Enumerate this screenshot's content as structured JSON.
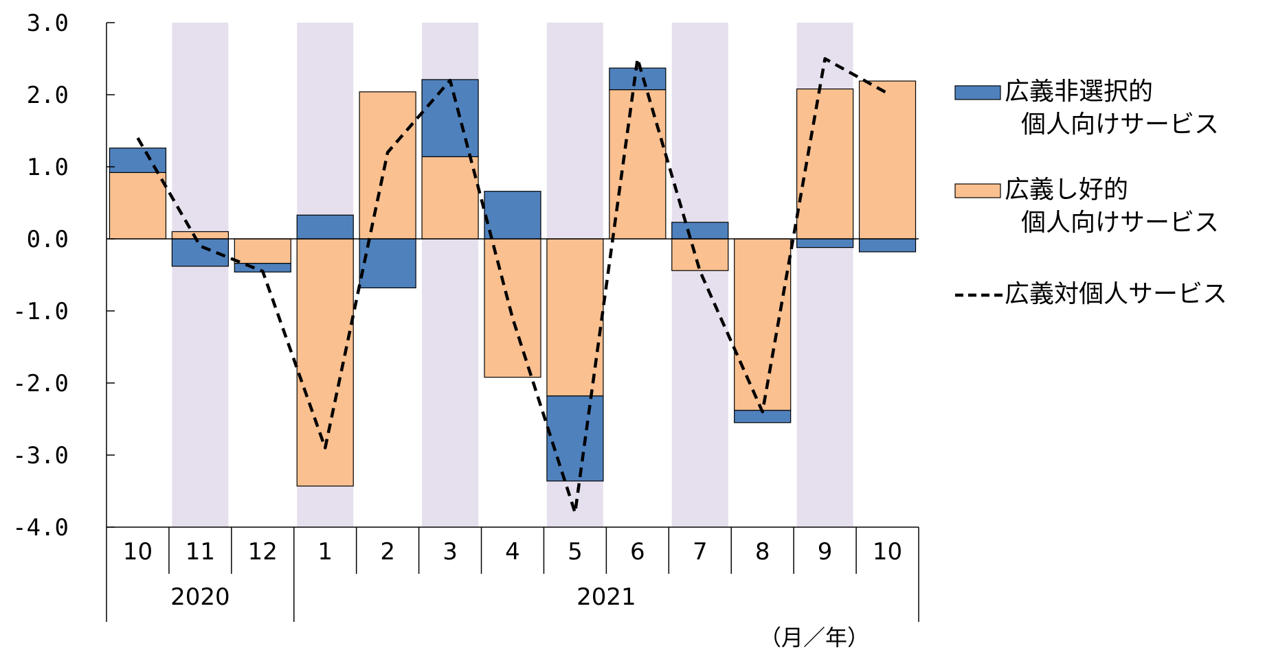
{
  "chart_data": {
    "type": "bar",
    "stacked": true,
    "months": [
      "10",
      "11",
      "12",
      "1",
      "2",
      "3",
      "4",
      "5",
      "6",
      "7",
      "8",
      "9",
      "10"
    ],
    "years": [
      {
        "label": "2020",
        "span": 3
      },
      {
        "label": "2021",
        "span": 10
      }
    ],
    "unit_label": "（月／年）",
    "ylim": [
      -4.0,
      3.0
    ],
    "yticks": [
      "3.0",
      "2.0",
      "1.0",
      "0.0",
      "-1.0",
      "-2.0",
      "-3.0",
      "-4.0"
    ],
    "shaded_months": [
      1,
      3,
      5,
      7,
      9,
      11
    ],
    "series": [
      {
        "name": [
          "広義非選択的",
          "個人向けサービス"
        ],
        "type": "bar",
        "color": "#4f81bd",
        "values": [
          0.34,
          -0.38,
          -0.12,
          0.33,
          -0.68,
          1.07,
          0.66,
          -1.18,
          0.3,
          0.23,
          -0.17,
          -0.12,
          -0.18
        ]
      },
      {
        "name": [
          "広義し好的",
          "個人向けサービス"
        ],
        "type": "bar",
        "color": "#fac090",
        "values": [
          0.92,
          0.1,
          -0.34,
          -3.43,
          2.04,
          1.14,
          -1.92,
          -2.18,
          2.07,
          -0.44,
          -2.38,
          2.08,
          2.19
        ]
      },
      {
        "name": [
          "広義対個人サービス"
        ],
        "type": "line",
        "style": "dashed",
        "color": "#000000",
        "values": [
          1.4,
          -0.1,
          -0.45,
          -2.9,
          1.2,
          2.2,
          -1.1,
          -3.8,
          2.5,
          -0.45,
          -2.4,
          2.5,
          2.02
        ]
      }
    ]
  }
}
